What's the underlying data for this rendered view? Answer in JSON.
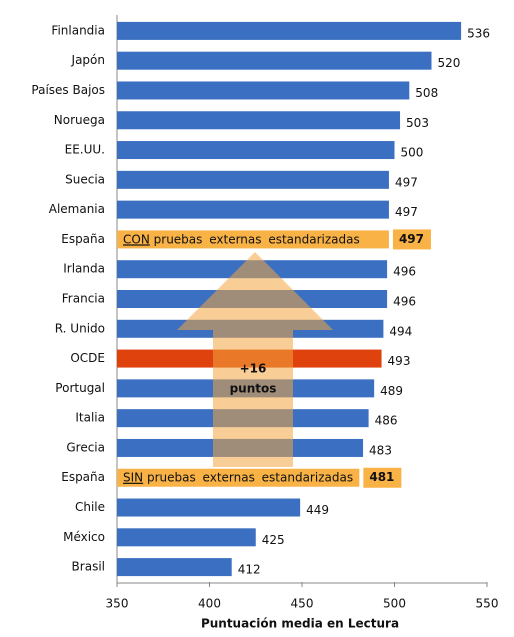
{
  "chart_data": {
    "type": "barh",
    "categories": [
      "Finlandia",
      "Japón",
      "Países Bajos",
      "Noruega",
      "EE.UU.",
      "Suecia",
      "Alemania",
      "España",
      "Irlanda",
      "Francia",
      "R. Unido",
      "OCDE",
      "Portugal",
      "Italia",
      "Grecia",
      "España",
      "Chile",
      "México",
      "Brasil"
    ],
    "values": [
      536,
      520,
      508,
      503,
      500,
      497,
      497,
      497,
      496,
      496,
      494,
      493,
      489,
      486,
      483,
      481,
      449,
      425,
      412
    ],
    "colors": [
      "#3b6fc2",
      "#3b6fc2",
      "#3b6fc2",
      "#3b6fc2",
      "#3b6fc2",
      "#3b6fc2",
      "#3b6fc2",
      "#f8b246",
      "#3b6fc2",
      "#3b6fc2",
      "#3b6fc2",
      "#e0420e",
      "#3b6fc2",
      "#3b6fc2",
      "#3b6fc2",
      "#f8b246",
      "#3b6fc2",
      "#3b6fc2",
      "#3b6fc2"
    ],
    "bar_notes": [
      null,
      null,
      null,
      null,
      null,
      null,
      null,
      {
        "emphasis": "CON",
        "text": "pruebas externas estandarizadas"
      },
      null,
      null,
      null,
      null,
      null,
      null,
      null,
      {
        "emphasis": "SIN",
        "text": "pruebas externas estandarizadas"
      },
      null,
      null,
      null
    ],
    "xlim": [
      350,
      550
    ],
    "xticks": [
      350,
      400,
      450,
      500,
      550
    ],
    "x_label": "Puntuación media en Lectura",
    "annotation_lines": [
      "+16",
      "puntos"
    ],
    "grid": false
  }
}
